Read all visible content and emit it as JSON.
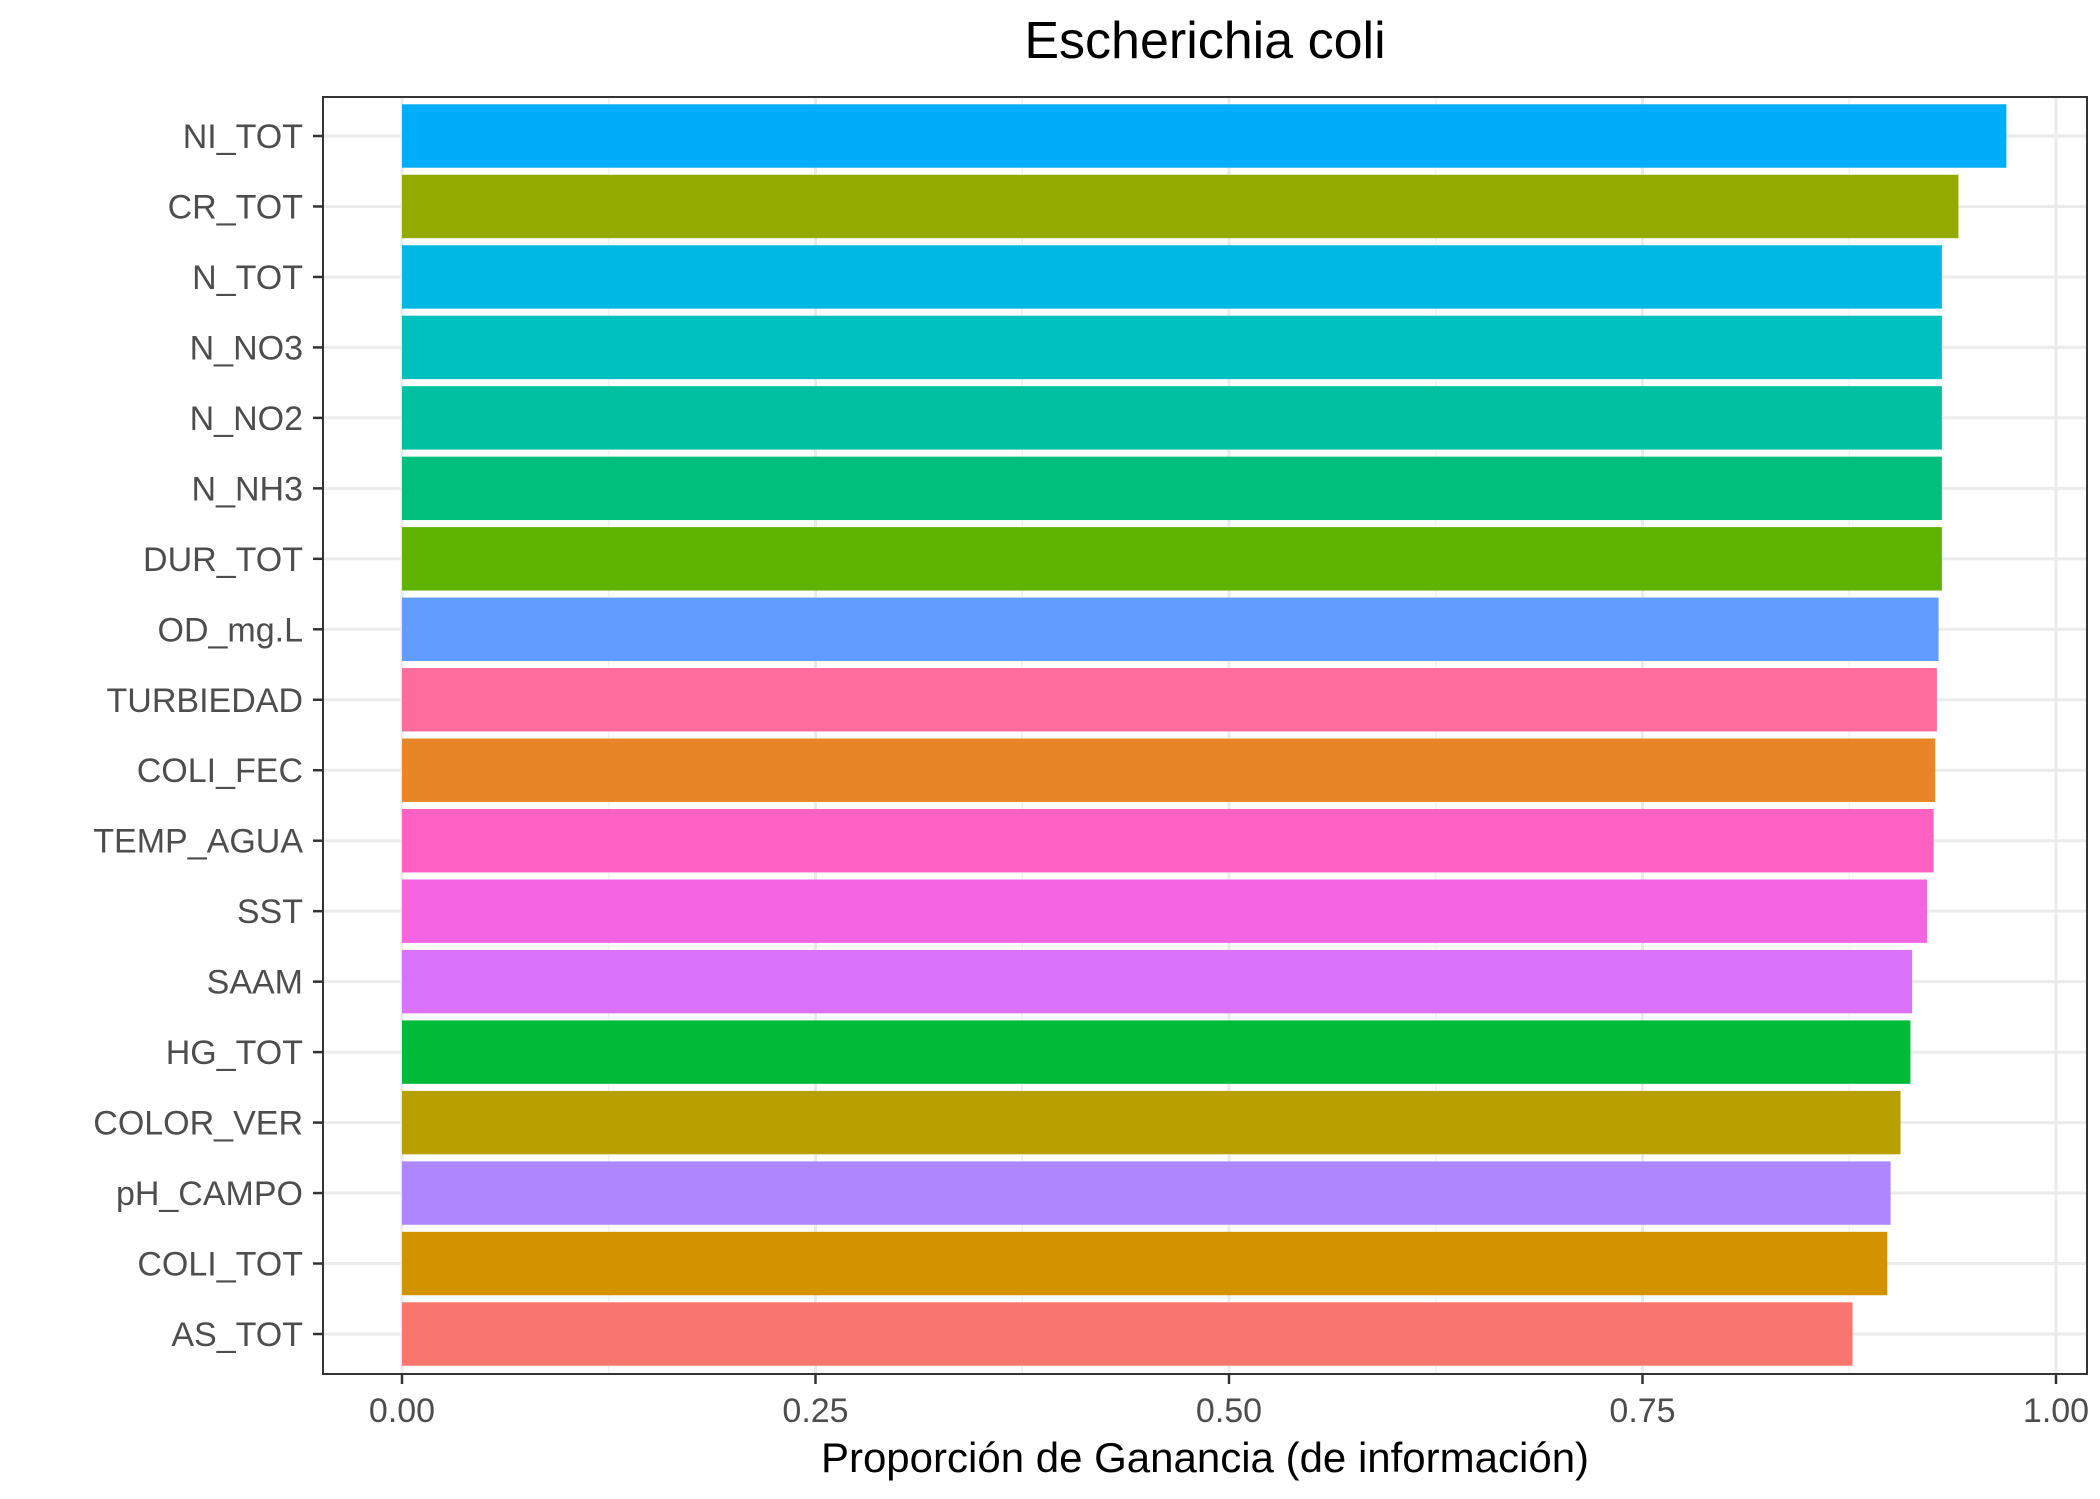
{
  "chart_data": {
    "type": "bar",
    "orientation": "horizontal",
    "title": "Escherichia coli",
    "xlabel": "Proporción de Ganancia (de información)",
    "ylabel": "",
    "xlim": [
      0,
      1
    ],
    "x_ticks": [
      "0.00",
      "0.25",
      "0.50",
      "0.75",
      "1.00"
    ],
    "grid": true,
    "legend": "none",
    "categories": [
      "NI_TOT",
      "CR_TOT",
      "N_TOT",
      "N_NO3",
      "N_NO2",
      "N_NH3",
      "DUR_TOT",
      "OD_mg.L",
      "TURBIEDAD",
      "COLI_FEC",
      "TEMP_AGUA",
      "SST",
      "SAAM",
      "HG_TOT",
      "COLOR_VER",
      "pH_CAMPO",
      "COLI_TOT",
      "AS_TOT"
    ],
    "values": [
      0.97,
      0.941,
      0.931,
      0.931,
      0.931,
      0.931,
      0.931,
      0.929,
      0.928,
      0.927,
      0.926,
      0.922,
      0.913,
      0.912,
      0.906,
      0.9,
      0.898,
      0.877
    ],
    "colors": [
      "#00ADFA",
      "#93AA00",
      "#00B9E3",
      "#00C1C0",
      "#00C19F",
      "#00BF7D",
      "#5EB300",
      "#619CFF",
      "#FF6C9D",
      "#E88526",
      "#FF61C3",
      "#F564E3",
      "#DB72FB",
      "#00BA38",
      "#B79F00",
      "#AE87FF",
      "#D39200",
      "#F8766D"
    ]
  }
}
